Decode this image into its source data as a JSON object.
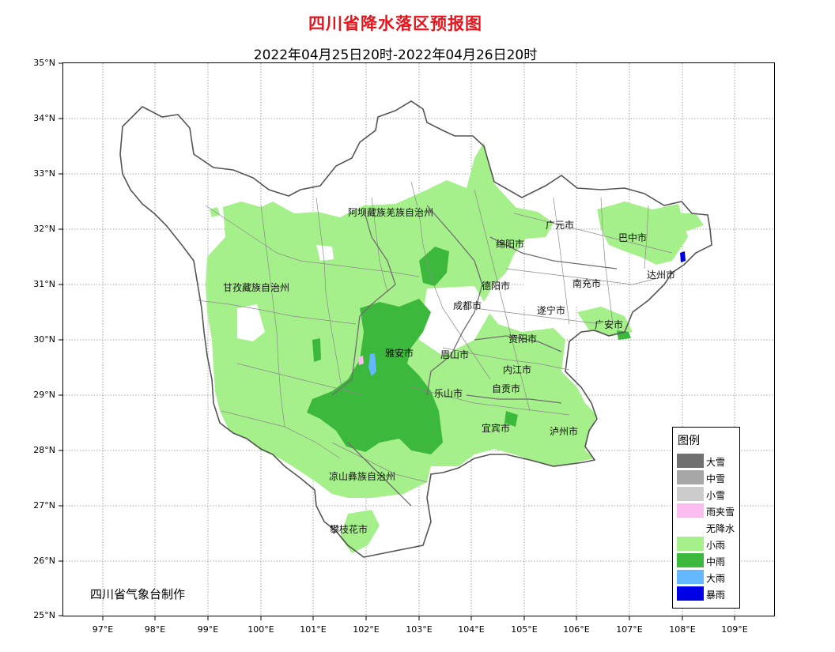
{
  "title": "四川省降水落区预报图",
  "subtitle": "2022年04月25日20时-2022年04月26日20时",
  "lat_labels": [
    "35°N",
    "34°N",
    "33°N",
    "32°N",
    "31°N",
    "30°N",
    "29°N",
    "28°N",
    "27°N",
    "26°N",
    "25°N"
  ],
  "lon_labels": [
    "97°E",
    "98°E",
    "99°E",
    "100°E",
    "101°E",
    "102°E",
    "103°E",
    "104°E",
    "105°E",
    "106°E",
    "107°E",
    "108°E",
    "109°E"
  ],
  "cities": {
    "aba": "阿坝藏族羌族自治州",
    "ganzi": "甘孜藏族自治州",
    "guangyuan": "广元市",
    "bazhong": "巴中市",
    "mianyang": "绵阳市",
    "deyang": "德阳市",
    "nanchong": "南充市",
    "dazhou": "达州市",
    "chengdu": "成都市",
    "suining": "遂宁市",
    "guangan": "广安市",
    "yaan": "雅安市",
    "meishan": "眉山市",
    "ziyang": "资阳市",
    "neijiang": "内江市",
    "leshan": "乐山市",
    "zigong": "自贡市",
    "yibin": "宜宾市",
    "luzhou": "泸州市",
    "liangshan": "凉山彝族自治州",
    "panzhihua": "攀枝花市"
  },
  "credit": "四川省气象台制作",
  "legend": {
    "title": "图例",
    "items": [
      {
        "label": "大雪",
        "color": "#707070"
      },
      {
        "label": "中雪",
        "color": "#a6a6a6"
      },
      {
        "label": "小雪",
        "color": "#cccccc"
      },
      {
        "label": "雨夹雪",
        "color": "#fbbcf0"
      },
      {
        "label": "无降水",
        "color": "#ffffff"
      },
      {
        "label": "小雨",
        "color": "#a6f08c"
      },
      {
        "label": "中雨",
        "color": "#3cb93c"
      },
      {
        "label": "大雨",
        "color": "#63b8ff"
      },
      {
        "label": "暴雨",
        "color": "#0000e6"
      }
    ]
  }
}
